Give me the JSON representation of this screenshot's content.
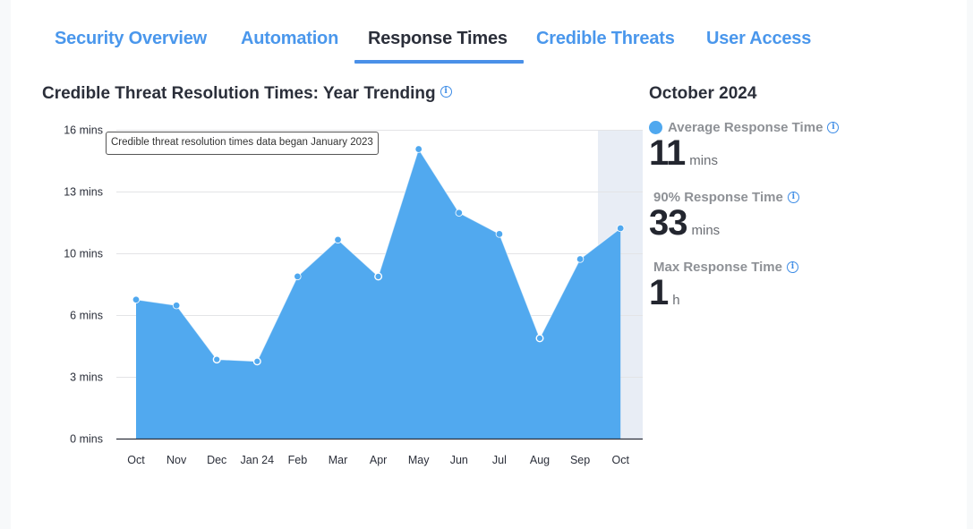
{
  "tabs": [
    {
      "label": "Security Overview",
      "active": false
    },
    {
      "label": "Automation",
      "active": false
    },
    {
      "label": "Response Times",
      "active": true
    },
    {
      "label": "Credible Threats",
      "active": false
    },
    {
      "label": "User Access",
      "active": false
    }
  ],
  "chart": {
    "title": "Credible Threat Resolution Times: Year Trending",
    "info_icon": "info-icon",
    "note": "Credible threat resolution times data began January 2023"
  },
  "summary": {
    "period": "October 2024",
    "metrics": [
      {
        "label": "Average Response Time",
        "value": "11",
        "unit": "mins",
        "legend_dot": true
      },
      {
        "label": "90% Response Time",
        "value": "33",
        "unit": "mins",
        "legend_dot": false
      },
      {
        "label": "Max Response Time",
        "value": "1",
        "unit": "h",
        "legend_dot": false
      }
    ]
  },
  "colors": {
    "accent": "#4a97ec",
    "area_fill": "#51a9ef",
    "active_tab_text": "#2b2f3a",
    "highlight_band": "#e8edf5"
  },
  "chart_data": {
    "type": "area",
    "title": "Credible Threat Resolution Times: Year Trending",
    "xlabel": "",
    "ylabel": "",
    "categories": [
      "Oct",
      "Nov",
      "Dec",
      "Jan 24",
      "Feb",
      "Mar",
      "Apr",
      "May",
      "Jun",
      "Jul",
      "Aug",
      "Sep",
      "Oct"
    ],
    "series": [
      {
        "name": "Average Response Time (mins)",
        "values": [
          7.2,
          6.9,
          4.1,
          4.0,
          8.4,
          10.3,
          8.4,
          15.0,
          11.7,
          10.6,
          5.2,
          9.3,
          10.9
        ]
      }
    ],
    "y_ticks": [
      "0 mins",
      "3 mins",
      "6 mins",
      "10 mins",
      "13 mins",
      "16 mins"
    ],
    "ylim": [
      0,
      16
    ],
    "grid": true,
    "highlighted_category": "Oct (2024)",
    "annotation": "Credible threat resolution times data began January 2023"
  }
}
